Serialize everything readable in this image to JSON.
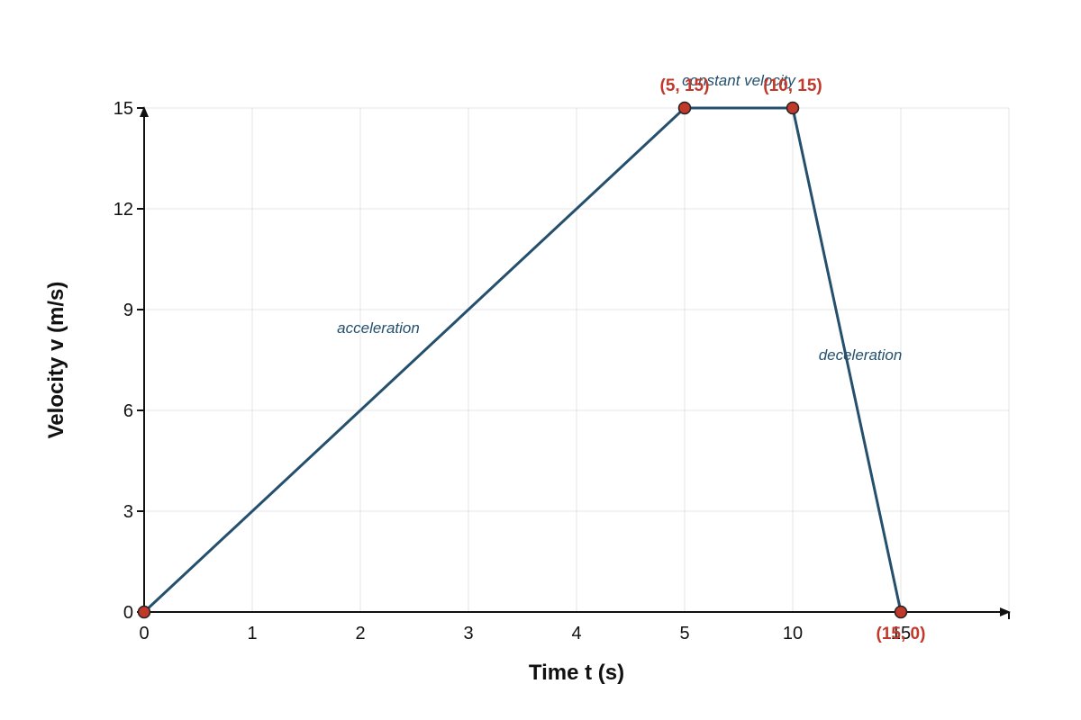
{
  "chart_data": {
    "type": "line",
    "title": "",
    "xlabel": "Time t (s)",
    "ylabel": "Velocity v (m/s)",
    "x_tick_labels": [
      "0",
      "1",
      "2",
      "3",
      "4",
      "5",
      "10",
      "15"
    ],
    "y_tick_labels": [
      "0",
      "3",
      "6",
      "9",
      "12",
      "15"
    ],
    "ylim": [
      0,
      15
    ],
    "grid": true,
    "series": [
      {
        "x": [
          0,
          5,
          10,
          15
        ],
        "y": [
          0,
          15,
          15,
          0
        ],
        "color": "#24506e"
      }
    ],
    "point_labels": [
      "(5, 15)",
      "(10, 15)",
      "(15, 0)"
    ],
    "annotations": [
      "acceleration",
      "constant velocity",
      "deceleration"
    ],
    "point_color": "#c0392b",
    "line_color": "#24506e"
  }
}
